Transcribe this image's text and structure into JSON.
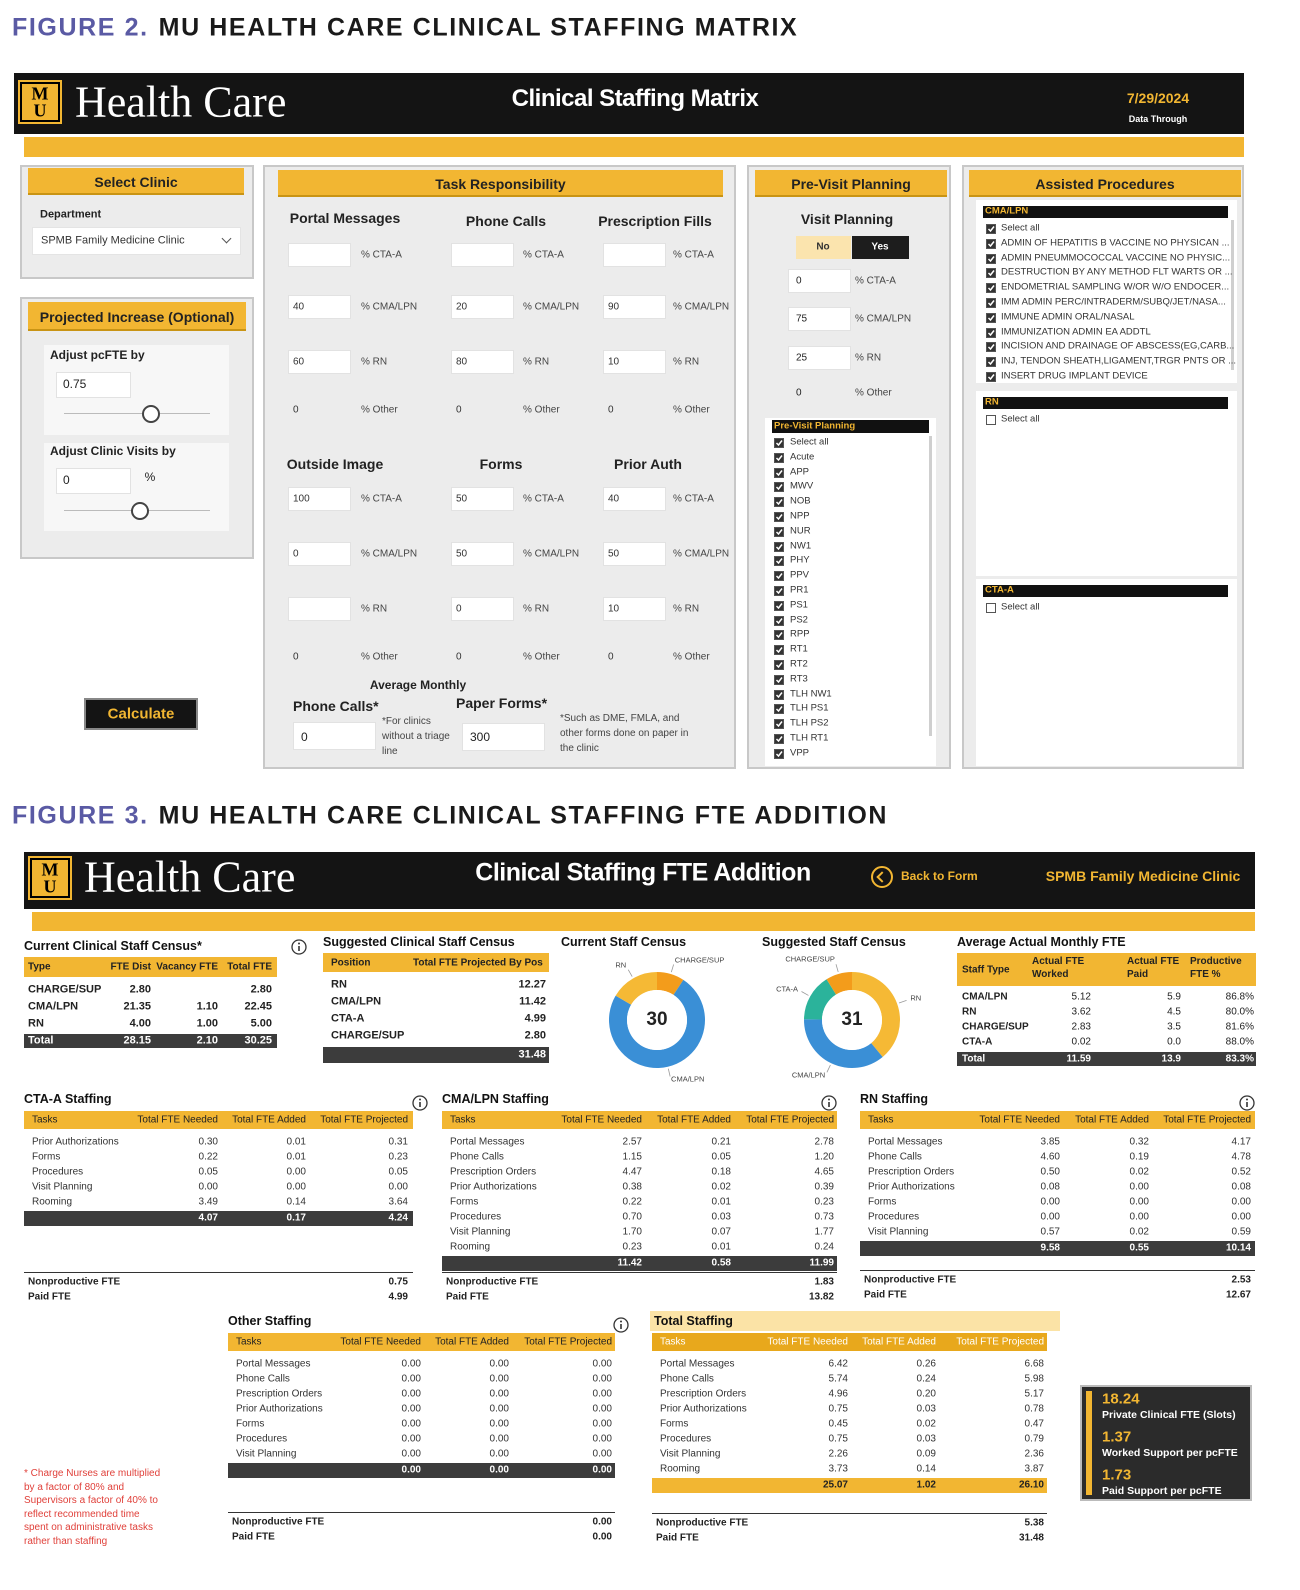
{
  "figure2": {
    "caption_number": "FIGURE 2.",
    "caption": "MU HEALTH CARE CLINICAL STAFFING MATRIX",
    "header": {
      "logo_letters": [
        "M",
        "U"
      ],
      "brand": "Health Care",
      "title": "Clinical Staffing Matrix",
      "date": "7/29/2024",
      "date_label": "Data Through"
    },
    "select_clinic": {
      "title": "Select Clinic",
      "label": "Department",
      "value": "SPMB Family Medicine Clinic"
    },
    "projected_increase": {
      "title": "Projected Increase (Optional)",
      "pcfte": {
        "label": "Adjust pcFTE by",
        "value": 0.75
      },
      "visits": {
        "label": "Adjust Clinic Visits by",
        "value": 0,
        "unit": "%"
      }
    },
    "calculate": "Calculate",
    "task_responsibility": {
      "title": "Task Responsibility",
      "groups": [
        {
          "name": "Portal Messages",
          "rows": [
            {
              "label": "% CTA-A"
            },
            {
              "value": 40,
              "label": "% CMA/LPN"
            },
            {
              "value": 60,
              "label": "% RN"
            },
            {
              "value": 0,
              "label": "% Other"
            }
          ]
        },
        {
          "name": "Phone Calls",
          "rows": [
            {
              "label": "% CTA-A"
            },
            {
              "value": 20,
              "label": "% CMA/LPN"
            },
            {
              "value": 80,
              "label": "% RN"
            },
            {
              "value": 0,
              "label": "% Other"
            }
          ]
        },
        {
          "name": "Prescription Fills",
          "rows": [
            {
              "label": "% CTA-A"
            },
            {
              "value": 90,
              "label": "% CMA/LPN"
            },
            {
              "value": 10,
              "label": "% RN"
            },
            {
              "value": 0,
              "label": "% Other"
            }
          ]
        },
        {
          "name": "Outside Image",
          "rows": [
            {
              "value": 100,
              "label": "% CTA-A"
            },
            {
              "value": 0,
              "label": "% CMA/LPN"
            },
            {
              "label": "% RN"
            },
            {
              "value": 0,
              "label": "% Other"
            }
          ]
        },
        {
          "name": "Forms",
          "rows": [
            {
              "value": 50,
              "label": "% CTA-A"
            },
            {
              "value": 50,
              "label": "% CMA/LPN"
            },
            {
              "value": 0,
              "label": "% RN"
            },
            {
              "value": 0,
              "label": "% Other"
            }
          ]
        },
        {
          "name": "Prior Auth",
          "rows": [
            {
              "value": 40,
              "label": "% CTA-A"
            },
            {
              "value": 50,
              "label": "% CMA/LPN"
            },
            {
              "value": 10,
              "label": "% RN"
            },
            {
              "value": 0,
              "label": "% Other"
            }
          ]
        }
      ],
      "average_monthly": {
        "title": "Average Monthly",
        "phone_calls": {
          "label": "Phone Calls*",
          "value": 0,
          "note": "*For clinics without a triage line"
        },
        "paper_forms": {
          "label": "Paper Forms*",
          "value": 300,
          "note": "*Such as DME, FMLA, and other forms done on paper in the clinic"
        }
      }
    },
    "pre_visit_planning": {
      "title": "Pre-Visit Planning",
      "subtitle": "Visit Planning",
      "toggle": [
        "No",
        "Yes"
      ],
      "rows": [
        {
          "value": 0,
          "label": "% CTA-A"
        },
        {
          "value": 75,
          "label": "% CMA/LPN"
        },
        {
          "value": 25,
          "label": "% RN"
        },
        {
          "value": 0,
          "label": "% Other"
        }
      ],
      "list": {
        "header": "Pre-Visit Planning",
        "checked": true,
        "items": [
          "Select all",
          "Acute",
          "APP",
          "MWV",
          "NOB",
          "NPP",
          "NUR",
          "NW1",
          "PHY",
          "PPV",
          "PR1",
          "PS1",
          "PS2",
          "RPP",
          "RT1",
          "RT2",
          "RT3",
          "TLH NW1",
          "TLH PS1",
          "TLH PS2",
          "TLH RT1",
          "VPP"
        ]
      }
    },
    "assisted_procedures": {
      "title": "Assisted Procedures",
      "lists": [
        {
          "header": "CMA/LPN",
          "checked": true,
          "items": [
            "Select all",
            "ADMIN OF HEPATITIS B VACCINE NO PHYSICAN ...",
            "ADMIN PNEUMMOCOCCAL VACCINE NO PHYSIC...",
            "DESTRUCTION BY ANY METHOD FLT WARTS OR ...",
            "ENDOMETRIAL SAMPLING W/OR W/O ENDOCER...",
            "IMM ADMIN PERC/INTRADERM/SUBQ/JET/NASA...",
            "IMMUNE ADMIN ORAL/NASAL",
            "IMMUNIZATION ADMIN EA ADDTL",
            "INCISION AND DRAINAGE OF ABSCESS(EG,CARB...",
            "INJ, TENDON SHEATH,LIGAMENT,TRGR PNTS OR ...",
            "INSERT DRUG IMPLANT DEVICE"
          ]
        },
        {
          "header": "RN",
          "checked": false,
          "items": [
            "Select all"
          ]
        },
        {
          "header": "CTA-A",
          "checked": false,
          "items": [
            "Select all"
          ]
        }
      ]
    }
  },
  "figure3": {
    "caption_number": "FIGURE 3.",
    "caption": "MU HEALTH CARE CLINICAL STAFFING FTE ADDITION",
    "header": {
      "logo_letters": [
        "M",
        "U"
      ],
      "brand": "Health Care",
      "title": "Clinical Staffing FTE Addition",
      "back": "Back to Form",
      "clinic": "SPMB Family Medicine Clinic"
    },
    "current_census": {
      "title": "Current Clinical Staff Census*",
      "columns": [
        "Type",
        "FTE Dist",
        "Vacancy FTE",
        "Total FTE"
      ],
      "rows": [
        [
          "CHARGE/SUP",
          "2.80",
          null,
          "2.80"
        ],
        [
          "CMA/LPN",
          "21.35",
          "1.10",
          "22.45"
        ],
        [
          "RN",
          "4.00",
          "1.00",
          "5.00"
        ]
      ],
      "total": [
        "Total",
        "28.15",
        "2.10",
        "30.25"
      ]
    },
    "suggested_census": {
      "title": "Suggested Clinical Staff Census",
      "columns": [
        "Position",
        "Total FTE Projected By Pos"
      ],
      "rows": [
        [
          "RN",
          "12.27"
        ],
        [
          "CMA/LPN",
          "11.42"
        ],
        [
          "CTA-A",
          "4.99"
        ],
        [
          "CHARGE/SUP",
          "2.80"
        ]
      ],
      "total": [
        null,
        "31.48"
      ]
    },
    "current_donut": {
      "type": "donut",
      "title": "Current Staff Census",
      "center": 30,
      "segments": [
        {
          "label": "CHARGE/SUP",
          "value": 2.8,
          "color": "#f39c1b"
        },
        {
          "label": "CMA/LPN",
          "value": 22.45,
          "color": "#3a8fd6"
        },
        {
          "label": "RN",
          "value": 5.0,
          "color": "#f5b935"
        }
      ]
    },
    "suggested_donut": {
      "type": "donut",
      "title": "Suggested Staff Census",
      "center": 31,
      "segments": [
        {
          "label": "RN",
          "value": 12.27,
          "color": "#f5b935"
        },
        {
          "label": "CMA/LPN",
          "value": 11.42,
          "color": "#3a8fd6"
        },
        {
          "label": "CTA-A",
          "value": 4.99,
          "color": "#2bb39b"
        },
        {
          "label": "CHARGE/SUP",
          "value": 2.8,
          "color": "#f39c1b"
        }
      ]
    },
    "avg_monthly": {
      "title": "Average Actual Monthly FTE",
      "columns": [
        "Staff Type",
        "Actual FTE Worked",
        "Actual FTE Paid",
        "Productive FTE %"
      ],
      "rows": [
        [
          "CMA/LPN",
          "5.12",
          "5.9",
          "86.8%"
        ],
        [
          "RN",
          "3.62",
          "4.5",
          "80.0%"
        ],
        [
          "CHARGE/SUP",
          "2.83",
          "3.5",
          "81.6%"
        ],
        [
          "CTA-A",
          "0.02",
          "0.0",
          "88.0%"
        ]
      ],
      "total": [
        "Total",
        "11.59",
        "13.9",
        "83.3%"
      ]
    },
    "staffing": [
      {
        "title": "CTA-A Staffing",
        "columns": [
          "Tasks",
          "Total FTE Needed",
          "Total FTE Added",
          "Total FTE Projected"
        ],
        "rows": [
          [
            "Prior Authorizations",
            "0.30",
            "0.01",
            "0.31"
          ],
          [
            "Forms",
            "0.22",
            "0.01",
            "0.23"
          ],
          [
            "Procedures",
            "0.05",
            "0.00",
            "0.05"
          ],
          [
            "Visit Planning",
            "0.00",
            "0.00",
            "0.00"
          ],
          [
            "Rooming",
            "3.49",
            "0.14",
            "3.64"
          ]
        ],
        "total": [
          null,
          "4.07",
          "0.17",
          "4.24"
        ],
        "footer": [
          [
            "Nonproductive FTE",
            "0.75"
          ],
          [
            "Paid FTE",
            "4.99"
          ]
        ]
      },
      {
        "title": "CMA/LPN Staffing",
        "columns": [
          "Tasks",
          "Total FTE Needed",
          "Total FTE Added",
          "Total FTE Projected"
        ],
        "rows": [
          [
            "Portal Messages",
            "2.57",
            "0.21",
            "2.78"
          ],
          [
            "Phone Calls",
            "1.15",
            "0.05",
            "1.20"
          ],
          [
            "Prescription Orders",
            "4.47",
            "0.18",
            "4.65"
          ],
          [
            "Prior Authorizations",
            "0.38",
            "0.02",
            "0.39"
          ],
          [
            "Forms",
            "0.22",
            "0.01",
            "0.23"
          ],
          [
            "Procedures",
            "0.70",
            "0.03",
            "0.73"
          ],
          [
            "Visit Planning",
            "1.70",
            "0.07",
            "1.77"
          ],
          [
            "Rooming",
            "0.23",
            "0.01",
            "0.24"
          ]
        ],
        "total": [
          null,
          "11.42",
          "0.58",
          "11.99"
        ],
        "footer": [
          [
            "Nonproductive FTE",
            "1.83"
          ],
          [
            "Paid FTE",
            "13.82"
          ]
        ]
      },
      {
        "title": "RN Staffing",
        "columns": [
          "Tasks",
          "Total FTE Needed",
          "Total FTE Added",
          "Total FTE Projected"
        ],
        "rows": [
          [
            "Portal Messages",
            "3.85",
            "0.32",
            "4.17"
          ],
          [
            "Phone Calls",
            "4.60",
            "0.19",
            "4.78"
          ],
          [
            "Prescription Orders",
            "0.50",
            "0.02",
            "0.52"
          ],
          [
            "Prior Authorizations",
            "0.08",
            "0.00",
            "0.08"
          ],
          [
            "Forms",
            "0.00",
            "0.00",
            "0.00"
          ],
          [
            "Procedures",
            "0.00",
            "0.00",
            "0.00"
          ],
          [
            "Visit Planning",
            "0.57",
            "0.02",
            "0.59"
          ]
        ],
        "total": [
          null,
          "9.58",
          "0.55",
          "10.14"
        ],
        "footer": [
          [
            "Nonproductive FTE",
            "2.53"
          ],
          [
            "Paid FTE",
            "12.67"
          ]
        ]
      },
      {
        "title": "Other Staffing",
        "columns": [
          "Tasks",
          "Total FTE Needed",
          "Total FTE Added",
          "Total FTE Projected"
        ],
        "rows": [
          [
            "Portal Messages",
            "0.00",
            "0.00",
            "0.00"
          ],
          [
            "Phone Calls",
            "0.00",
            "0.00",
            "0.00"
          ],
          [
            "Prescription Orders",
            "0.00",
            "0.00",
            "0.00"
          ],
          [
            "Prior Authorizations",
            "0.00",
            "0.00",
            "0.00"
          ],
          [
            "Forms",
            "0.00",
            "0.00",
            "0.00"
          ],
          [
            "Procedures",
            "0.00",
            "0.00",
            "0.00"
          ],
          [
            "Visit Planning",
            "0.00",
            "0.00",
            "0.00"
          ]
        ],
        "total": [
          null,
          "0.00",
          "0.00",
          "0.00"
        ],
        "footer": [
          [
            "Nonproductive FTE",
            "0.00"
          ],
          [
            "Paid FTE",
            "0.00"
          ]
        ]
      },
      {
        "title": "Total Staffing",
        "columns": [
          "Tasks",
          "Total FTE Needed",
          "Total FTE Added",
          "Total FTE Projected"
        ],
        "rows": [
          [
            "Portal Messages",
            "6.42",
            "0.26",
            "6.68"
          ],
          [
            "Phone Calls",
            "5.74",
            "0.24",
            "5.98"
          ],
          [
            "Prescription Orders",
            "4.96",
            "0.20",
            "5.17"
          ],
          [
            "Prior Authorizations",
            "0.75",
            "0.03",
            "0.78"
          ],
          [
            "Forms",
            "0.45",
            "0.02",
            "0.47"
          ],
          [
            "Procedures",
            "0.75",
            "0.03",
            "0.79"
          ],
          [
            "Visit Planning",
            "2.26",
            "0.09",
            "2.36"
          ],
          [
            "Rooming",
            "3.73",
            "0.14",
            "3.87"
          ]
        ],
        "total": [
          null,
          "25.07",
          "1.02",
          "26.10"
        ],
        "footer": [
          [
            "Nonproductive FTE",
            "5.38"
          ],
          [
            "Paid FTE",
            "31.48"
          ]
        ]
      }
    ],
    "kpis": [
      {
        "value": 18.24,
        "label": "Private Clinical FTE (Slots)"
      },
      {
        "value": 1.37,
        "label": "Worked Support per pcFTE"
      },
      {
        "value": 1.73,
        "label": "Paid Support per pcFTE"
      }
    ],
    "footnote": "* Charge Nurses are multiplied by a factor of 80% and Supervisors a factor of 40% to reflect recommended time spent on administrative tasks rather than staffing"
  }
}
